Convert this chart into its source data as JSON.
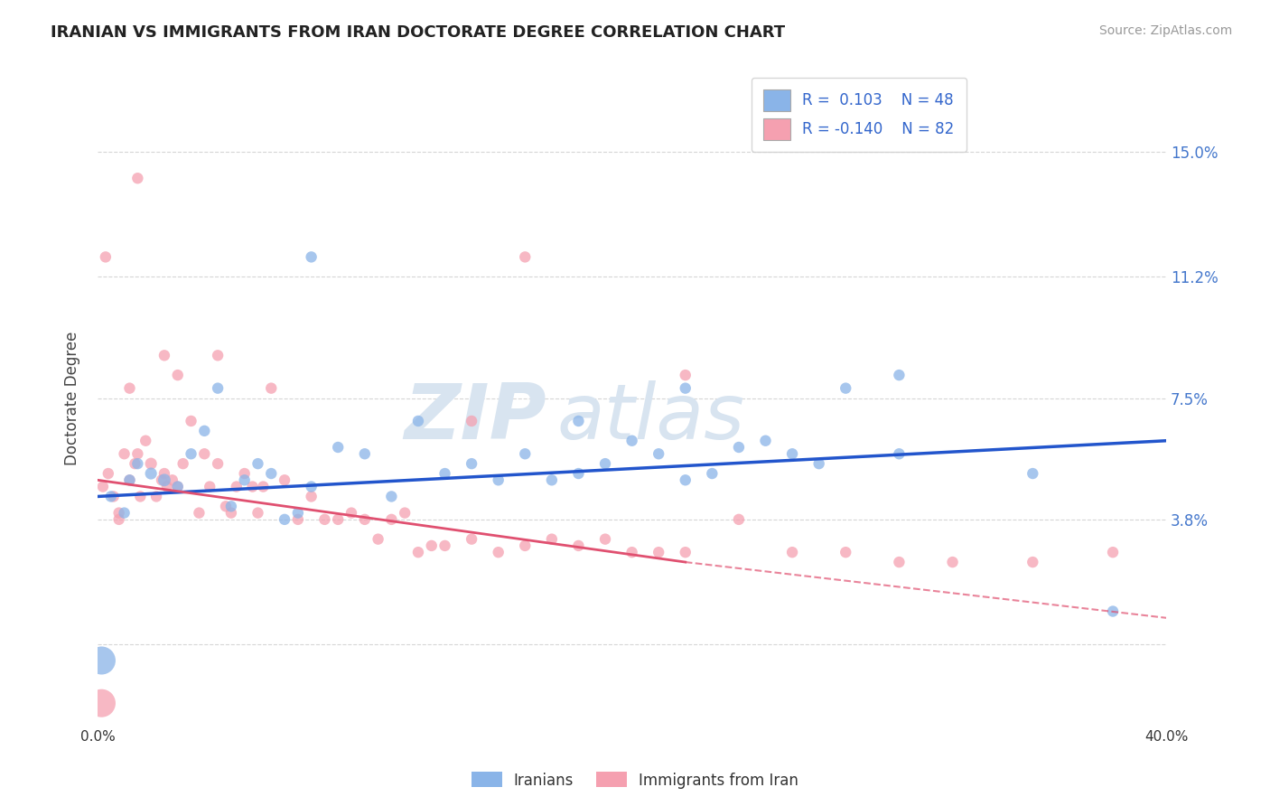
{
  "title": "IRANIAN VS IMMIGRANTS FROM IRAN DOCTORATE DEGREE CORRELATION CHART",
  "source": "Source: ZipAtlas.com",
  "ylabel": "Doctorate Degree",
  "xlim": [
    0.0,
    40.0
  ],
  "ylim": [
    -2.5,
    17.5
  ],
  "ytick_vals": [
    0.0,
    3.8,
    7.5,
    11.2,
    15.0
  ],
  "ytick_labels": [
    "",
    "3.8%",
    "7.5%",
    "11.2%",
    "15.0%"
  ],
  "background_color": "#ffffff",
  "grid_color": "#cccccc",
  "blue_color": "#8ab4e8",
  "pink_color": "#f5a0b0",
  "blue_line_color": "#2255cc",
  "pink_line_color": "#e05070",
  "label1": "Iranians",
  "label2": "Immigrants from Iran",
  "watermark_zip": "ZIP",
  "watermark_atlas": "atlas",
  "blue_x": [
    0.5,
    1.0,
    1.2,
    1.5,
    2.0,
    2.5,
    3.0,
    3.5,
    4.0,
    4.5,
    5.0,
    5.5,
    6.0,
    6.5,
    7.0,
    7.5,
    8.0,
    9.0,
    10.0,
    11.0,
    12.0,
    13.0,
    14.0,
    15.0,
    16.0,
    17.0,
    18.0,
    19.0,
    20.0,
    21.0,
    22.0,
    23.0,
    24.0,
    25.0,
    26.0,
    27.0,
    28.0,
    30.0,
    35.0,
    8.0,
    18.0,
    22.0,
    30.0,
    38.0
  ],
  "blue_y": [
    4.5,
    4.0,
    5.0,
    5.5,
    5.2,
    5.0,
    4.8,
    5.8,
    6.5,
    7.8,
    4.2,
    5.0,
    5.5,
    5.2,
    3.8,
    4.0,
    4.8,
    6.0,
    5.8,
    4.5,
    6.8,
    5.2,
    5.5,
    5.0,
    5.8,
    5.0,
    5.2,
    5.5,
    6.2,
    5.8,
    5.0,
    5.2,
    6.0,
    6.2,
    5.8,
    5.5,
    7.8,
    5.8,
    5.2,
    11.8,
    6.8,
    7.8,
    8.2,
    1.0
  ],
  "blue_sizes": [
    80,
    80,
    80,
    80,
    90,
    100,
    80,
    80,
    80,
    80,
    80,
    80,
    80,
    80,
    80,
    80,
    80,
    80,
    80,
    80,
    80,
    80,
    80,
    80,
    80,
    80,
    80,
    80,
    80,
    80,
    80,
    80,
    80,
    80,
    80,
    80,
    80,
    80,
    80,
    80,
    80,
    80,
    80,
    80
  ],
  "pink_x": [
    0.2,
    0.4,
    0.6,
    0.8,
    1.0,
    1.2,
    1.4,
    1.5,
    1.6,
    1.8,
    2.0,
    2.2,
    2.4,
    2.5,
    2.6,
    2.8,
    3.0,
    3.2,
    3.5,
    3.8,
    4.0,
    4.2,
    4.5,
    4.8,
    5.0,
    5.2,
    5.5,
    5.8,
    6.0,
    6.2,
    6.5,
    7.0,
    7.5,
    8.0,
    8.5,
    9.0,
    9.5,
    10.0,
    10.5,
    11.0,
    11.5,
    12.0,
    12.5,
    13.0,
    14.0,
    15.0,
    16.0,
    17.0,
    18.0,
    19.0,
    20.0,
    21.0,
    22.0,
    24.0,
    26.0,
    28.0,
    30.0,
    32.0,
    35.0,
    38.0,
    1.5,
    0.3,
    0.8,
    2.5,
    3.0,
    4.5,
    1.2,
    14.0,
    16.0,
    22.0
  ],
  "pink_y": [
    4.8,
    5.2,
    4.5,
    4.0,
    5.8,
    5.0,
    5.5,
    5.8,
    4.5,
    6.2,
    5.5,
    4.5,
    5.0,
    5.2,
    4.8,
    5.0,
    4.8,
    5.5,
    6.8,
    4.0,
    5.8,
    4.8,
    5.5,
    4.2,
    4.0,
    4.8,
    5.2,
    4.8,
    4.0,
    4.8,
    7.8,
    5.0,
    3.8,
    4.5,
    3.8,
    3.8,
    4.0,
    3.8,
    3.2,
    3.8,
    4.0,
    2.8,
    3.0,
    3.0,
    3.2,
    2.8,
    3.0,
    3.2,
    3.0,
    3.2,
    2.8,
    2.8,
    2.8,
    3.8,
    2.8,
    2.8,
    2.5,
    2.5,
    2.5,
    2.8,
    14.2,
    11.8,
    3.8,
    8.8,
    8.2,
    8.8,
    7.8,
    6.8,
    11.8,
    8.2
  ],
  "pink_sizes": [
    80,
    80,
    80,
    80,
    80,
    80,
    80,
    80,
    80,
    80,
    90,
    80,
    80,
    80,
    80,
    80,
    80,
    80,
    80,
    80,
    80,
    80,
    80,
    80,
    80,
    80,
    80,
    80,
    80,
    80,
    80,
    80,
    80,
    80,
    80,
    80,
    80,
    80,
    80,
    80,
    80,
    80,
    80,
    80,
    80,
    80,
    80,
    80,
    80,
    80,
    80,
    80,
    80,
    80,
    80,
    80,
    80,
    80,
    80,
    80,
    80,
    80,
    80,
    80,
    80,
    80,
    80,
    80,
    80,
    80
  ],
  "large_blue_x": 0.15,
  "large_blue_y": -0.5,
  "large_blue_size": 500,
  "large_pink_x": 0.15,
  "large_pink_y": -1.8,
  "large_pink_size": 500,
  "blue_trend": [
    0.0,
    40.0,
    4.5,
    6.2
  ],
  "pink_trend_solid": [
    0.0,
    22.0,
    5.0,
    2.5
  ],
  "pink_trend_dashed": [
    22.0,
    40.0,
    2.5,
    0.8
  ]
}
